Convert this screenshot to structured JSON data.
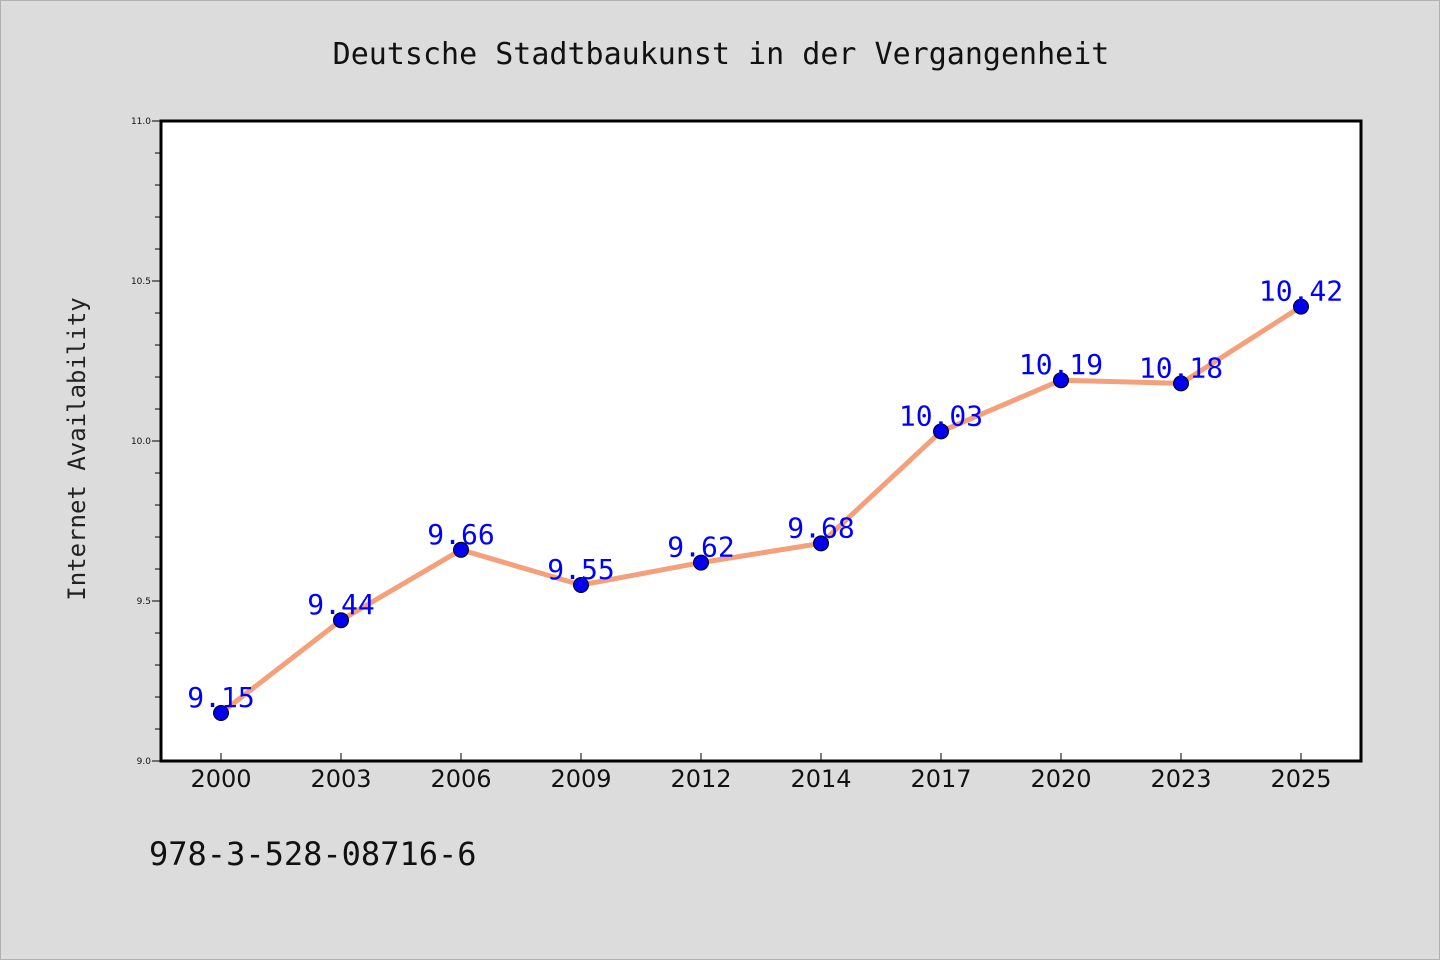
{
  "chart_data": {
    "type": "line",
    "title": "Deutsche Stadtbaukunst in der Vergangenheit",
    "xlabel": "",
    "ylabel": "Internet Availability",
    "categories": [
      "2000",
      "2003",
      "2006",
      "2009",
      "2012",
      "2014",
      "2017",
      "2020",
      "2023",
      "2025"
    ],
    "values": [
      9.15,
      9.44,
      9.66,
      9.55,
      9.62,
      9.68,
      10.03,
      10.19,
      10.18,
      10.42
    ],
    "data_labels": [
      "9.15",
      "9.44",
      "9.66",
      "9.55",
      "9.62",
      "9.68",
      "10.03",
      "10.19",
      "10.18",
      "10.42"
    ],
    "ylim": [
      9.0,
      11.0
    ],
    "yticks": [
      9.0,
      9.5,
      10.0,
      10.5,
      11.0
    ],
    "ytick_labels": [
      "9.0",
      "9.5",
      "10.0",
      "10.5",
      "11.0"
    ],
    "grid": false,
    "line_color": "#f4a07a",
    "marker_color": "#0000ee",
    "label_color": "#0000ff"
  },
  "footer": {
    "isbn": "978-3-528-08716-6"
  }
}
